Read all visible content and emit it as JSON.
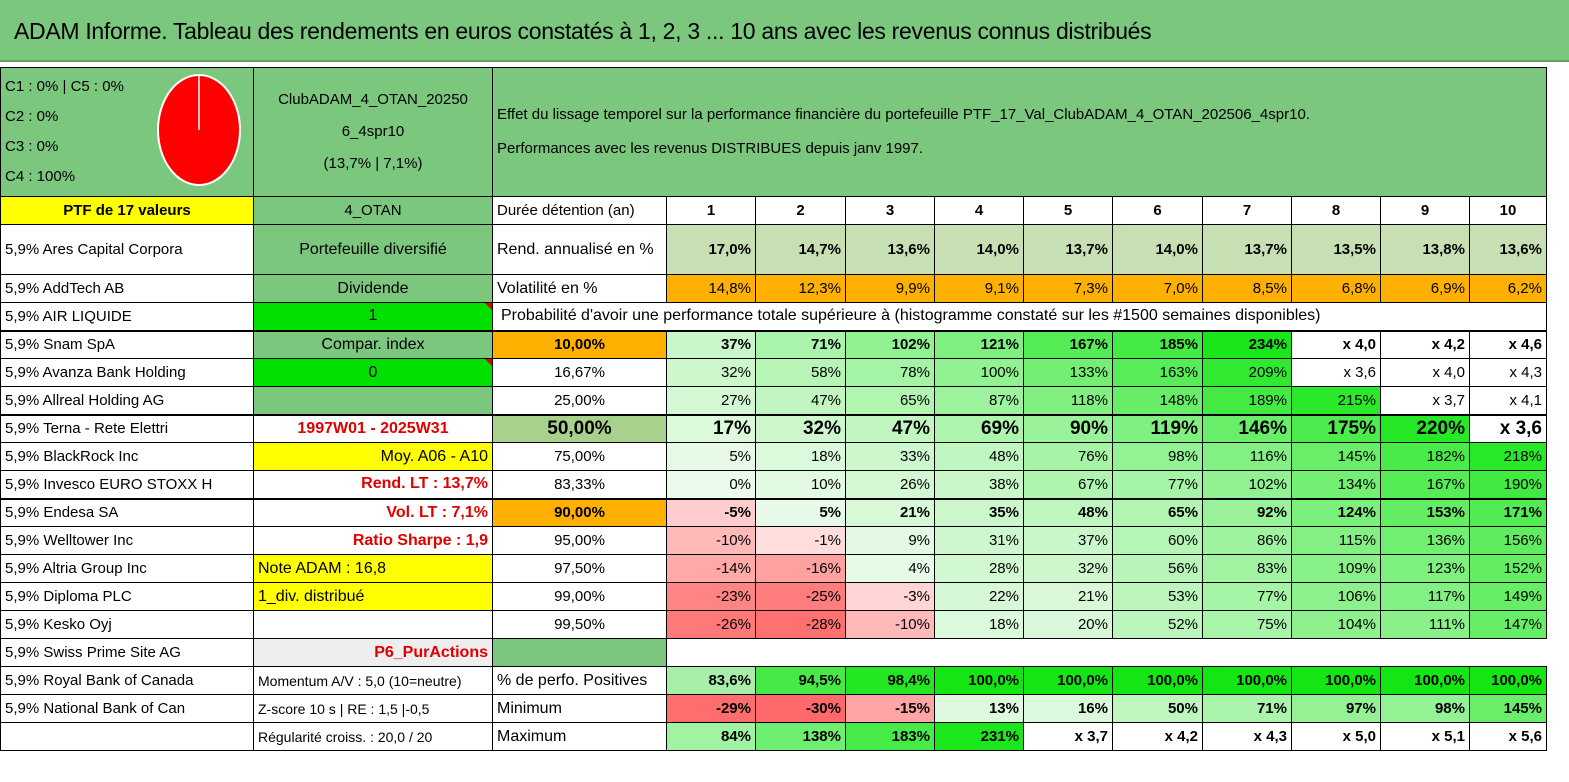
{
  "title": "ADAM Informe. Tableau des rendements en euros constatés à 1, 2, 3 ... 10 ans avec les revenus connus distribués",
  "config": {
    "lines": [
      "C1 : 0% | C5 : 0%",
      "C2 : 0%",
      "C3 : 0%",
      "C4 : 100%"
    ],
    "pie": {
      "C4": 100,
      "color": "#ff0000"
    }
  },
  "portfolio_header": {
    "line1": "ClubADAM_4_OTAN_20250",
    "line2": "6_4spr10",
    "line3": "(13,7% | 7,1%)"
  },
  "effect_text": {
    "line1": "Effet du lissage temporel sur la performance financière du portefeuille PTF_17_Val_ClubADAM_4_OTAN_202506_4spr10.",
    "line2": "Performances avec les revenus DISTRIBUES depuis janv 1997."
  },
  "ptf_label": "PTF de 17 valeurs",
  "otan_label": "4_OTAN",
  "duration_label": "Durée détention (an)",
  "years": [
    "1",
    "2",
    "3",
    "4",
    "5",
    "6",
    "7",
    "8",
    "9",
    "10"
  ],
  "holdings": [
    "5,9% Ares Capital Corpora",
    "5,9% AddTech AB",
    "5,9% AIR LIQUIDE",
    "5,9% Snam SpA",
    "5,9% Avanza Bank Holding",
    "5,9% Allreal Holding AG",
    "5,9% Terna - Rete Elettri",
    "5,9% BlackRock Inc",
    "5,9% Invesco EURO STOXX H",
    "5,9% Endesa SA",
    "5,9% Welltower Inc",
    "5,9% Altria Group Inc",
    "5,9% Diploma PLC",
    "5,9% Kesko Oyj",
    "5,9% Swiss Prime Site AG",
    "5,9% Royal Bank of Canada",
    "5,9% National Bank of Can"
  ],
  "side": {
    "diversified": "Portefeuille diversifié",
    "dividend": "Dividende",
    "one": "1",
    "compar": "Compar. index",
    "zero": "0",
    "period": "1997W01 - 2025W31",
    "moy": "Moy. A06 - A10",
    "rend_lt": "Rend. LT : 13,7%",
    "vol_lt": "Vol. LT : 7,1%",
    "sharpe": "Ratio Sharpe : 1,9",
    "note": "Note ADAM : 16,8",
    "div": "1_div. distribué",
    "p6": "P6_PurActions",
    "momentum": "Momentum A/V : 5,0 (10=neutre)",
    "zscore": "Z-score 10 s | RE : 1,5 |-0,5",
    "regularite": "Régularité croiss. : 20,0 / 20"
  },
  "rend": {
    "label": "Rend. annualisé en %",
    "values": [
      "17,0%",
      "14,7%",
      "13,6%",
      "14,0%",
      "13,7%",
      "14,0%",
      "13,7%",
      "13,5%",
      "13,8%",
      "13,6%"
    ]
  },
  "vol": {
    "label": "Volatilité en %",
    "values": [
      "14,8%",
      "12,3%",
      "9,9%",
      "9,1%",
      "7,3%",
      "7,0%",
      "8,5%",
      "6,8%",
      "6,9%",
      "6,2%"
    ]
  },
  "prob_title": "Probabilité d'avoir une performance totale supérieure à (histogramme constaté sur les #1500 semaines disponibles)",
  "prob_rows": [
    {
      "pct": "10,00%",
      "values": [
        "37%",
        "71%",
        "102%",
        "121%",
        "167%",
        "185%",
        "234%",
        "x 4,0",
        "x 4,2",
        "x 4,6"
      ]
    },
    {
      "pct": "16,67%",
      "values": [
        "32%",
        "58%",
        "78%",
        "100%",
        "133%",
        "163%",
        "209%",
        "x 3,6",
        "x 4,0",
        "x 4,3"
      ]
    },
    {
      "pct": "25,00%",
      "values": [
        "27%",
        "47%",
        "65%",
        "87%",
        "118%",
        "148%",
        "189%",
        "215%",
        "x 3,7",
        "x 4,1"
      ]
    },
    {
      "pct": "50,00%",
      "values": [
        "17%",
        "32%",
        "47%",
        "69%",
        "90%",
        "119%",
        "146%",
        "175%",
        "220%",
        "x 3,6"
      ]
    },
    {
      "pct": "75,00%",
      "values": [
        "5%",
        "18%",
        "33%",
        "48%",
        "76%",
        "98%",
        "116%",
        "145%",
        "182%",
        "218%"
      ]
    },
    {
      "pct": "83,33%",
      "values": [
        "0%",
        "10%",
        "26%",
        "38%",
        "67%",
        "77%",
        "102%",
        "134%",
        "167%",
        "190%"
      ]
    },
    {
      "pct": "90,00%",
      "values": [
        "-5%",
        "5%",
        "21%",
        "35%",
        "48%",
        "65%",
        "92%",
        "124%",
        "153%",
        "171%"
      ]
    },
    {
      "pct": "95,00%",
      "values": [
        "-10%",
        "-1%",
        "9%",
        "31%",
        "37%",
        "60%",
        "86%",
        "115%",
        "136%",
        "156%"
      ]
    },
    {
      "pct": "97,50%",
      "values": [
        "-14%",
        "-16%",
        "4%",
        "28%",
        "32%",
        "56%",
        "83%",
        "109%",
        "123%",
        "152%"
      ]
    },
    {
      "pct": "99,00%",
      "values": [
        "-23%",
        "-25%",
        "-3%",
        "22%",
        "21%",
        "53%",
        "77%",
        "106%",
        "117%",
        "149%"
      ]
    },
    {
      "pct": "99,50%",
      "values": [
        "-26%",
        "-28%",
        "-10%",
        "18%",
        "20%",
        "52%",
        "75%",
        "104%",
        "111%",
        "147%"
      ]
    }
  ],
  "positives": {
    "label": "% de perfo. Positives",
    "values": [
      "83,6%",
      "94,5%",
      "98,4%",
      "100,0%",
      "100,0%",
      "100,0%",
      "100,0%",
      "100,0%",
      "100,0%",
      "100,0%"
    ]
  },
  "minimum": {
    "label": "Minimum",
    "values": [
      "-29%",
      "-30%",
      "-15%",
      "13%",
      "16%",
      "50%",
      "71%",
      "97%",
      "98%",
      "145%"
    ]
  },
  "maximum": {
    "label": "Maximum",
    "values": [
      "84%",
      "138%",
      "183%",
      "231%",
      "x 3,7",
      "x 4,2",
      "x 4,3",
      "x 5,0",
      "x 5,1",
      "x 5,6"
    ]
  },
  "colors": {
    "header_green": "#7cc77e",
    "yellow": "#ffff00",
    "orange": "#ffb000",
    "bright_green": "#00e000",
    "red_text": "#e00000"
  }
}
